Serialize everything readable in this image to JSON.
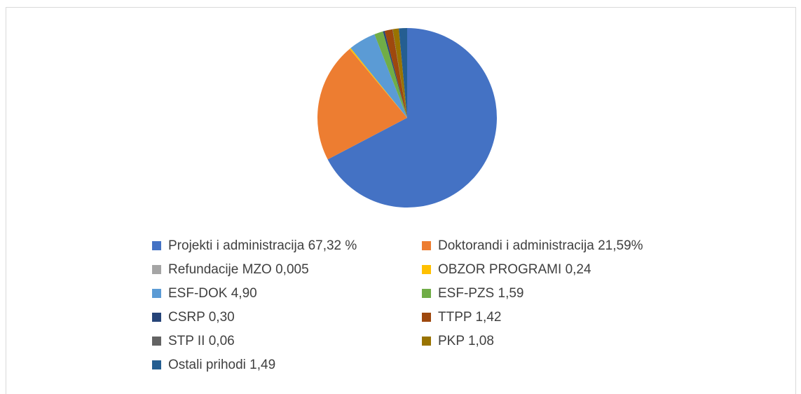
{
  "chart_data": {
    "type": "pie",
    "categories": [
      "Projekti i administracija 67,32 %",
      "Doktorandi i administracija 21,59%",
      "Refundacije MZO 0,005",
      "OBZOR PROGRAMI 0,24",
      "ESF-DOK 4,90",
      "ESF-PZS 1,59",
      "CSRP 0,30",
      "TTPP 1,42",
      "STP II 0,06",
      "PKP 1,08",
      "Ostali prihodi 1,49"
    ],
    "values": [
      67.32,
      21.59,
      0.005,
      0.24,
      4.9,
      1.59,
      0.3,
      1.42,
      0.06,
      1.08,
      1.49
    ],
    "colors": [
      "#4472c4",
      "#ed7d31",
      "#a5a5a5",
      "#ffc000",
      "#5b9bd5",
      "#70ad47",
      "#264478",
      "#9e480e",
      "#636363",
      "#997300",
      "#255e91"
    ],
    "legend": "bottom"
  }
}
